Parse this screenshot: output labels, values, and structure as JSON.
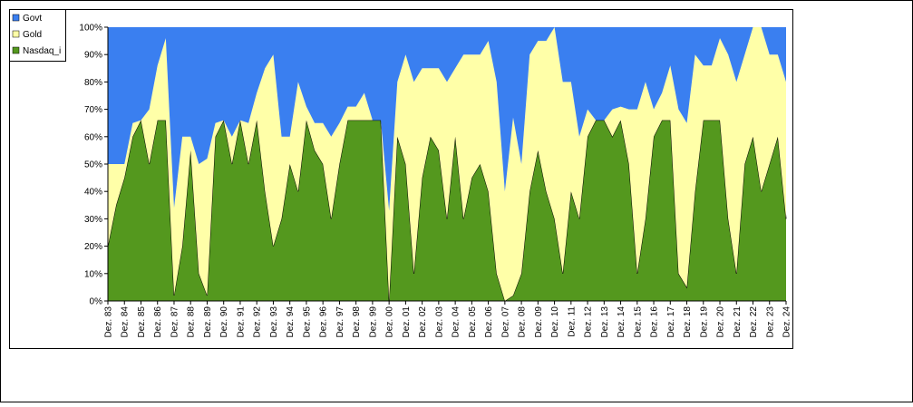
{
  "chart_data": {
    "type": "stacked_area_percent",
    "categories": [
      "Dez. 83",
      null,
      "Dez. 84",
      null,
      "Dez. 85",
      null,
      "Dez. 86",
      null,
      "Dez. 87",
      null,
      "Dez. 88",
      null,
      "Dez. 89",
      null,
      "Dez. 90",
      null,
      "Dez. 91",
      null,
      "Dez. 92",
      null,
      "Dez. 93",
      null,
      "Dez. 94",
      null,
      "Dez. 95",
      null,
      "Dez. 96",
      null,
      "Dez. 97",
      null,
      "Dez. 98",
      null,
      "Dez. 99",
      null,
      "Dez. 00",
      null,
      "Dez. 01",
      null,
      "Dez. 02",
      null,
      "Dez. 03",
      null,
      "Dez. 04",
      null,
      "Dez. 05",
      null,
      "Dez. 06",
      null,
      "Dez. 07",
      null,
      "Dez. 08",
      null,
      "Dez. 09",
      null,
      "Dez. 10",
      null,
      "Dez. 11",
      null,
      "Dez. 12",
      null,
      "Dez. 13",
      null,
      "Dez. 14",
      null,
      "Dez. 15",
      null,
      "Dez. 16",
      null,
      "Dez. 17",
      null,
      "Dez. 18",
      null,
      "Dez. 19",
      null,
      "Dez. 20",
      null,
      "Dez. 21",
      null,
      "Dez. 22",
      null,
      "Dez. 23",
      null,
      "Dez. 24"
    ],
    "series": [
      {
        "name": "Govt",
        "color": "#3a7ff0",
        "values": [
          50,
          50,
          50,
          35,
          34,
          30,
          14,
          4,
          66,
          40,
          40,
          50,
          48,
          35,
          34,
          40,
          34,
          35,
          24,
          15,
          10,
          40,
          40,
          20,
          29,
          35,
          35,
          40,
          35,
          29,
          29,
          24,
          34,
          34,
          67,
          20,
          10,
          20,
          15,
          15,
          15,
          20,
          15,
          10,
          10,
          10,
          5,
          20,
          60,
          33,
          50,
          10,
          5,
          5,
          0,
          20,
          20,
          40,
          30,
          34,
          34,
          30,
          29,
          30,
          30,
          20,
          30,
          24,
          14,
          30,
          35,
          10,
          14,
          14,
          4,
          10,
          20,
          10,
          0,
          0,
          10,
          10,
          20
        ]
      },
      {
        "name": "Gold",
        "color": "#ffffa8",
        "values": [
          30,
          15,
          5,
          5,
          0,
          20,
          20,
          30,
          32,
          40,
          5,
          40,
          50,
          5,
          0,
          10,
          0,
          15,
          10,
          45,
          70,
          30,
          10,
          40,
          5,
          10,
          15,
          30,
          15,
          5,
          5,
          10,
          0,
          0,
          33,
          20,
          40,
          70,
          40,
          25,
          30,
          50,
          25,
          60,
          45,
          40,
          55,
          70,
          40,
          65,
          40,
          50,
          40,
          55,
          70,
          70,
          40,
          30,
          10,
          0,
          0,
          10,
          5,
          20,
          60,
          50,
          10,
          10,
          20,
          60,
          60,
          50,
          20,
          20,
          30,
          60,
          70,
          40,
          40,
          60,
          40,
          30,
          50
        ]
      },
      {
        "name": "Nasdaq_i",
        "color": "#54981e",
        "values": [
          20,
          35,
          45,
          60,
          66,
          50,
          66,
          66,
          2,
          20,
          55,
          10,
          2,
          60,
          66,
          50,
          66,
          50,
          66,
          40,
          20,
          30,
          50,
          40,
          66,
          55,
          50,
          30,
          50,
          66,
          66,
          66,
          66,
          66,
          0,
          60,
          50,
          10,
          45,
          60,
          55,
          30,
          60,
          30,
          45,
          50,
          40,
          10,
          0,
          2,
          10,
          40,
          55,
          40,
          30,
          10,
          40,
          30,
          60,
          66,
          66,
          60,
          66,
          50,
          10,
          30,
          60,
          66,
          66,
          10,
          5,
          40,
          66,
          66,
          66,
          30,
          10,
          50,
          60,
          40,
          50,
          60,
          30
        ]
      }
    ],
    "ylim": [
      0,
      100
    ],
    "yticks": [
      {
        "value": 0,
        "label": "0%"
      },
      {
        "value": 10,
        "label": "10%"
      },
      {
        "value": 20,
        "label": "20%"
      },
      {
        "value": 30,
        "label": "30%"
      },
      {
        "value": 40,
        "label": "40%"
      },
      {
        "value": 50,
        "label": "50%"
      },
      {
        "value": 60,
        "label": "60%"
      },
      {
        "value": 70,
        "label": "70%"
      },
      {
        "value": 80,
        "label": "80%"
      },
      {
        "value": 90,
        "label": "90%"
      },
      {
        "value": 100,
        "label": "100%"
      }
    ],
    "legend": "top-left"
  }
}
